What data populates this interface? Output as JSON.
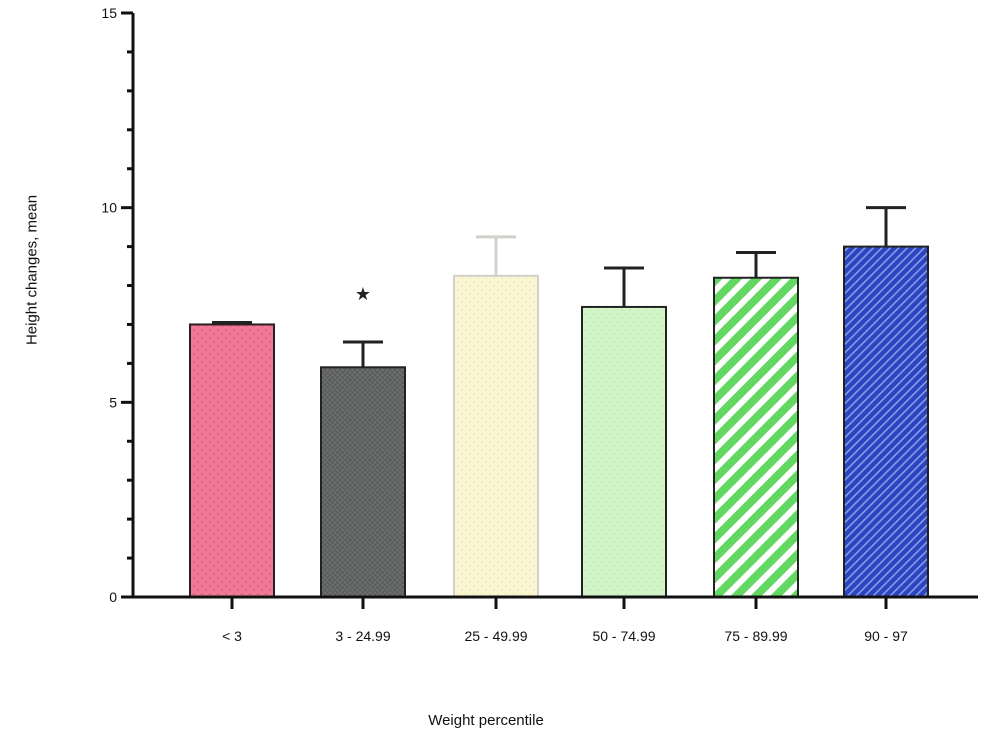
{
  "chart_data": {
    "type": "bar",
    "title": "",
    "xlabel": "Weight percentile",
    "ylabel": "Height changes, mean",
    "ylim": [
      0,
      15
    ],
    "yticks": [
      0,
      5,
      10,
      15
    ],
    "grid": false,
    "legend": "none",
    "categories": [
      "< 3",
      "3 - 24.99",
      "25 - 49.99",
      "50 - 74.99",
      "75 - 89.99",
      "90 - 97"
    ],
    "values": [
      7.0,
      5.9,
      8.25,
      7.45,
      8.2,
      9.0
    ],
    "error_upper": [
      0.05,
      0.65,
      1.0,
      1.0,
      0.65,
      1.0
    ],
    "annotations": [
      {
        "category": "3 - 24.99",
        "text": "★"
      }
    ],
    "fills": [
      {
        "color": "#f07a96",
        "pattern": "dots"
      },
      {
        "color": "#6f7170",
        "pattern": "crosshatch"
      },
      {
        "color": "#faf6d2",
        "pattern": "dots"
      },
      {
        "color": "#d2f5c8",
        "pattern": "dots"
      },
      {
        "color": "#62d862",
        "pattern": "stripes"
      },
      {
        "color": "#2b45c2",
        "pattern": "stripes"
      }
    ],
    "borders": [
      "#222222",
      "#222222",
      "#d0d0cc",
      "#222222",
      "#222222",
      "#222222"
    ]
  }
}
